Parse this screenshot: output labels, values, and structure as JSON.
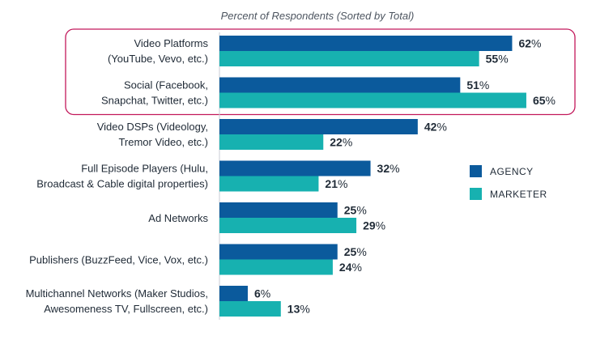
{
  "chart_data": {
    "type": "bar",
    "orientation": "horizontal",
    "subtitle": "Percent of Respondents (Sorted by Total)",
    "categories": [
      [
        "Video Platforms",
        "(YouTube, Vevo, etc.)"
      ],
      [
        "Social (Facebook,",
        "Snapchat, Twitter, etc.)"
      ],
      [
        "Video DSPs  (Videology,",
        "Tremor Video, etc.)"
      ],
      [
        "Full Episode Players (Hulu,",
        "Broadcast & Cable digital properties)"
      ],
      [
        "Ad Networks"
      ],
      [
        "Publishers (BuzzFeed, Vice, Vox, etc.)"
      ],
      [
        "Multichannel Networks (Maker Studios,",
        "Awesomeness TV, Fullscreen, etc.)"
      ]
    ],
    "series": [
      {
        "name": "AGENCY",
        "color": "#0b5a9c",
        "values": [
          62,
          51,
          42,
          32,
          25,
          25,
          6
        ]
      },
      {
        "name": "MARKETER",
        "color": "#17b1b0",
        "values": [
          55,
          65,
          22,
          21,
          29,
          24,
          13
        ]
      }
    ],
    "value_suffix": "%",
    "xlim": [
      0,
      100
    ],
    "highlight_categories": [
      0,
      1
    ],
    "highlight_color": "#c2185b",
    "grid": false,
    "legend_position": "right"
  }
}
